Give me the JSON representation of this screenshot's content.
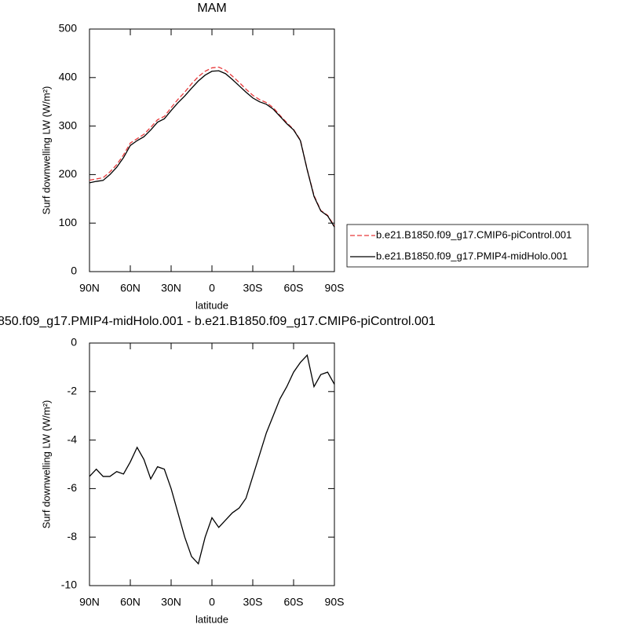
{
  "chart_data": [
    {
      "type": "line",
      "title": "MAM",
      "x_label": "latitude",
      "y_label": "Surf downwelling LW (W/m²)",
      "x": [
        90,
        85,
        80,
        75,
        70,
        65,
        60,
        55,
        50,
        45,
        40,
        35,
        30,
        25,
        20,
        15,
        10,
        5,
        0,
        -5,
        -10,
        -15,
        -20,
        -25,
        -30,
        -35,
        -40,
        -45,
        -50,
        -55,
        -60,
        -65,
        -70,
        -75,
        -80,
        -85,
        -90
      ],
      "xlim": [
        90,
        -90
      ],
      "xticks": [
        {
          "value": 90,
          "label": "90N"
        },
        {
          "value": 60,
          "label": "60N"
        },
        {
          "value": 30,
          "label": "30N"
        },
        0,
        {
          "value": -30,
          "label": "30S"
        },
        {
          "value": -60,
          "label": "60S"
        },
        {
          "value": -90,
          "label": "90S"
        }
      ],
      "ylim": [
        0,
        500
      ],
      "yticks": [
        0,
        100,
        200,
        300,
        400,
        500
      ],
      "legend": "right",
      "series": [
        {
          "name": "b.e21.B1850.f09_g17.CMIP6-piControl.001",
          "color": "#e8393b",
          "dashed": true,
          "values": [
            188.5,
            191,
            193.5,
            205.5,
            220.5,
            240.5,
            265,
            274,
            283,
            297.5,
            313,
            320,
            338,
            355,
            370,
            387,
            402,
            413,
            420,
            421.5,
            415,
            403,
            390,
            376,
            363.5,
            354.5,
            348.5,
            338,
            322,
            307,
            293,
            271,
            210.5,
            157,
            126,
            116,
            94
          ]
        },
        {
          "name": "b.e21.B1850.f09_g17.PMIP4-midHolo.001",
          "color": "#000000",
          "dashed": false,
          "values": [
            183,
            186,
            188,
            200,
            215,
            235,
            260,
            270,
            278,
            292,
            308,
            315,
            332,
            348,
            362,
            378,
            393,
            405,
            413,
            414,
            408,
            396,
            383,
            370,
            358,
            350,
            345,
            335,
            320,
            305,
            292,
            270,
            210,
            155,
            125,
            115,
            92
          ]
        }
      ]
    },
    {
      "type": "line",
      "title": "850.f09_g17.PMIP4-midHolo.001 - b.e21.B1850.f09_g17.CMIP6-piControl.001",
      "x_label": "latitude",
      "y_label": "Surf downwelling LW (W/m²)",
      "x": [
        90,
        85,
        80,
        75,
        70,
        65,
        60,
        55,
        50,
        45,
        40,
        35,
        30,
        25,
        20,
        15,
        10,
        5,
        0,
        -5,
        -10,
        -15,
        -20,
        -25,
        -30,
        -35,
        -40,
        -45,
        -50,
        -55,
        -60,
        -65,
        -70,
        -75,
        -80,
        -85,
        -90
      ],
      "xlim": [
        90,
        -90
      ],
      "xticks": [
        {
          "value": 90,
          "label": "90N"
        },
        {
          "value": 60,
          "label": "60N"
        },
        {
          "value": 30,
          "label": "30N"
        },
        0,
        {
          "value": -30,
          "label": "30S"
        },
        {
          "value": -60,
          "label": "60S"
        },
        {
          "value": -90,
          "label": "90S"
        }
      ],
      "ylim": [
        -10,
        0
      ],
      "yticks": [
        -10,
        -8,
        -6,
        -4,
        -2,
        0
      ],
      "series": [
        {
          "color": "#000000",
          "dashed": false,
          "values": [
            -5.5,
            -5.2,
            -5.5,
            -5.5,
            -5.3,
            -5.4,
            -4.9,
            -4.3,
            -4.8,
            -5.6,
            -5.1,
            -5.2,
            -6.0,
            -7.0,
            -8.0,
            -8.8,
            -9.1,
            -8.0,
            -7.2,
            -7.6,
            -7.3,
            -7.0,
            -6.8,
            -6.4,
            -5.5,
            -4.6,
            -3.7,
            -3.0,
            -2.3,
            -1.8,
            -1.2,
            -0.8,
            -0.5,
            -1.8,
            -1.3,
            -1.2,
            -1.7
          ]
        }
      ]
    }
  ]
}
